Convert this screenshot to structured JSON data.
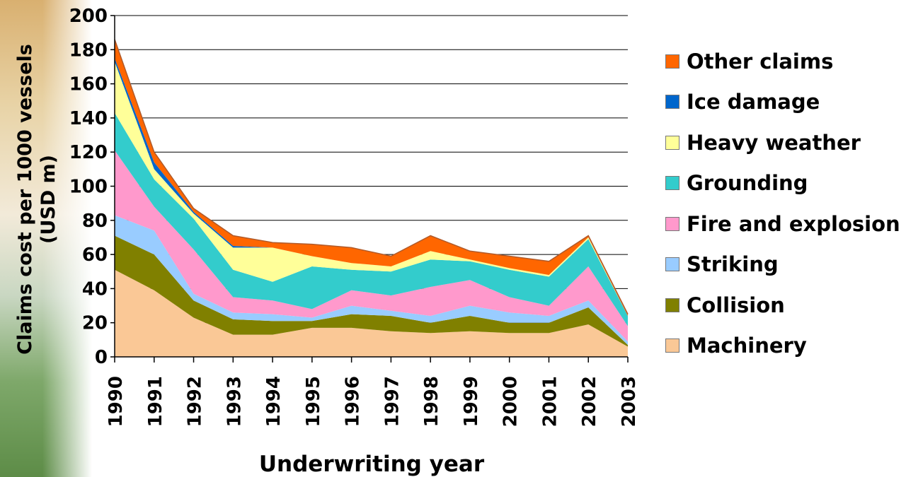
{
  "chart_data": {
    "type": "area",
    "stacked": true,
    "xlabel": "Underwriting year",
    "ylabel_line1": "Claims cost per 1000 vessels",
    "ylabel_line2": "(USD m)",
    "ylim": [
      0,
      200
    ],
    "yticks": [
      "0",
      "20",
      "40",
      "60",
      "80",
      "100",
      "120",
      "140",
      "160",
      "180",
      "200"
    ],
    "x": [
      "1990",
      "1991",
      "1992",
      "1993",
      "1994",
      "1995",
      "1996",
      "1997",
      "1998",
      "1999",
      "2000",
      "2001",
      "2002",
      "2003"
    ],
    "grid": true,
    "legend_position": "right",
    "series": [
      {
        "name": "Machinery",
        "color": "#fac896",
        "values": [
          51,
          39,
          23,
          13,
          13,
          17,
          17,
          15,
          14,
          15,
          14,
          14,
          19,
          6
        ]
      },
      {
        "name": "Collision",
        "color": "#808000",
        "values": [
          20,
          21,
          10,
          9,
          8,
          4,
          8,
          9,
          6,
          9,
          6,
          6,
          10,
          1
        ]
      },
      {
        "name": "Striking",
        "color": "#99ccff",
        "values": [
          12,
          14,
          4,
          4,
          4,
          2,
          5,
          3,
          4,
          6,
          6,
          4,
          4,
          2
        ]
      },
      {
        "name": "Fire and explosion",
        "color": "#ff99cc",
        "values": [
          38,
          14,
          26,
          9,
          8,
          5,
          9,
          9,
          17,
          15,
          9,
          6,
          20,
          9
        ]
      },
      {
        "name": "Grounding",
        "color": "#33cccc",
        "values": [
          22,
          16,
          18,
          16,
          11,
          25,
          12,
          14,
          16,
          11,
          16,
          17,
          16,
          6
        ]
      },
      {
        "name": "Heavy weather",
        "color": "#ffff99",
        "values": [
          30,
          6,
          3,
          13,
          20,
          6,
          4,
          3,
          5,
          1,
          1,
          1,
          1,
          0
        ]
      },
      {
        "name": "Ice damage",
        "color": "#0066cc",
        "values": [
          2,
          4,
          1,
          1,
          0,
          0,
          0,
          0,
          0,
          0,
          0,
          0,
          0,
          0
        ]
      },
      {
        "name": "Other claims",
        "color": "#ff6600",
        "values": [
          11,
          6,
          2,
          6,
          3,
          7,
          9,
          6,
          9,
          5,
          7,
          8,
          1,
          1
        ]
      }
    ]
  }
}
